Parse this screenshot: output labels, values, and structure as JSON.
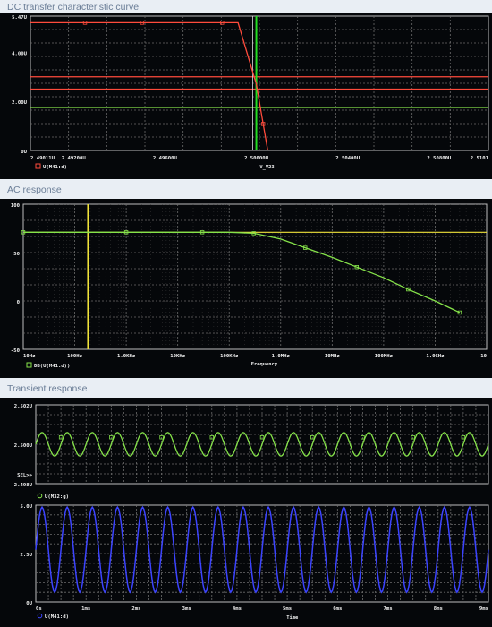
{
  "captions": {
    "dc": "DC transfer characteristic curve",
    "ac": "AC response",
    "tr": "Transient response"
  },
  "colors": {
    "background": "#05070a",
    "grid": "#6c6c6c",
    "red": "#ff4b3c",
    "green": "#86e34a",
    "yellow": "#f0e33a",
    "blue": "#3c44ff",
    "cursor_green": "#22dd22",
    "caption": "#6a7d96"
  },
  "chart_data": [
    {
      "type": "line",
      "title": "DC transfer characteristic curve",
      "xlabel": "V_V23",
      "xlim": [
        2.49011,
        2.51016
      ],
      "ylim": [
        0,
        5.47
      ],
      "x_ticks": [
        "2.49011U",
        "2.49200U",
        "2.49600U",
        "2.50000U",
        "2.50400U",
        "2.50800U",
        "2.5101"
      ],
      "x_tick_values": [
        2.49011,
        2.492,
        2.496,
        2.5,
        2.504,
        2.508,
        2.51016
      ],
      "y_ticks": [
        "5.47U",
        "4.00U",
        "2.00U",
        "0U"
      ],
      "y_tick_values": [
        5.47,
        4.0,
        2.0,
        0
      ],
      "legend": [
        "U(M41:d)"
      ],
      "horizontal_lines": [
        {
          "y": 3.0,
          "color": "red"
        },
        {
          "y": 2.5,
          "color": "red"
        },
        {
          "y": 1.75,
          "color": "green"
        }
      ],
      "vertical_lines": [
        {
          "x": 2.5,
          "color": "cursor_green"
        }
      ],
      "series": [
        {
          "name": "U(M41:d)",
          "color": "red",
          "x": [
            2.49011,
            2.494,
            2.498,
            2.4992,
            2.5,
            2.5005
          ],
          "y": [
            5.2,
            5.2,
            5.2,
            5.2,
            2.7,
            0
          ]
        }
      ]
    },
    {
      "type": "line",
      "title": "AC response",
      "xlabel": "Frequency",
      "xscale": "log",
      "xlim": [
        10,
        10000000000
      ],
      "ylim": [
        -50,
        100
      ],
      "x_ticks": [
        "10Hz",
        "100Hz",
        "1.0KHz",
        "10KHz",
        "100KHz",
        "1.0MHz",
        "10MHz",
        "100MHz",
        "1.0GHz",
        "10"
      ],
      "x_tick_values": [
        10,
        100,
        1000,
        10000,
        100000,
        1000000,
        10000000,
        100000000,
        1000000000,
        10000000000
      ],
      "y_ticks": [
        "100",
        "50",
        "0",
        "-50"
      ],
      "y_tick_values": [
        100,
        50,
        0,
        -50
      ],
      "legend": [
        "DB(U(M41:d))"
      ],
      "horizontal_lines": [
        {
          "y": 71,
          "color": "yellow"
        }
      ],
      "vertical_lines": [
        {
          "x": 180,
          "color": "yellow"
        }
      ],
      "series": [
        {
          "name": "DB(U(M41:d))",
          "color": "green",
          "x": [
            10,
            100,
            1000,
            10000,
            30000,
            100000,
            300000,
            1000000,
            3000000,
            10000000,
            30000000,
            100000000,
            300000000,
            1000000000,
            3000000000
          ],
          "y": [
            71,
            71,
            71,
            71,
            71,
            71,
            70,
            64,
            55,
            45,
            35,
            24,
            12,
            0,
            -12
          ]
        }
      ]
    },
    {
      "type": "line",
      "title": "Transient response",
      "xlabel": "Time",
      "xlim": [
        0,
        9
      ],
      "x_unit": "ms",
      "x_ticks": [
        "0s",
        "1ms",
        "2ms",
        "3ms",
        "4ms",
        "5ms",
        "6ms",
        "7ms",
        "8ms",
        "9ms"
      ],
      "x_tick_values": [
        0,
        1,
        2,
        3,
        4,
        5,
        6,
        7,
        8,
        9
      ],
      "upper": {
        "ylim": [
          2.498,
          2.502
        ],
        "y_ticks": [
          "2.502U",
          "2.500U",
          "SEL>>",
          "2.498U"
        ],
        "y_tick_values": [
          2.502,
          2.5,
          2.4985,
          2.498
        ],
        "legend": [
          "U(M32:g)"
        ],
        "series": [
          {
            "name": "U(M32:g)",
            "color": "green",
            "frequency_cycles_per_ms": 2.0,
            "offset": 2.5,
            "amplitude": 0.0006
          }
        ]
      },
      "lower": {
        "ylim": [
          0,
          5.0
        ],
        "y_ticks": [
          "5.0U",
          "2.5U",
          "0U"
        ],
        "y_tick_values": [
          5.0,
          2.5,
          0
        ],
        "legend": [
          "U(M41:d)"
        ],
        "series": [
          {
            "name": "U(M41:d)",
            "color": "blue",
            "frequency_cycles_per_ms": 2.0,
            "offset": 2.7,
            "amplitude": 2.2
          }
        ]
      }
    }
  ]
}
